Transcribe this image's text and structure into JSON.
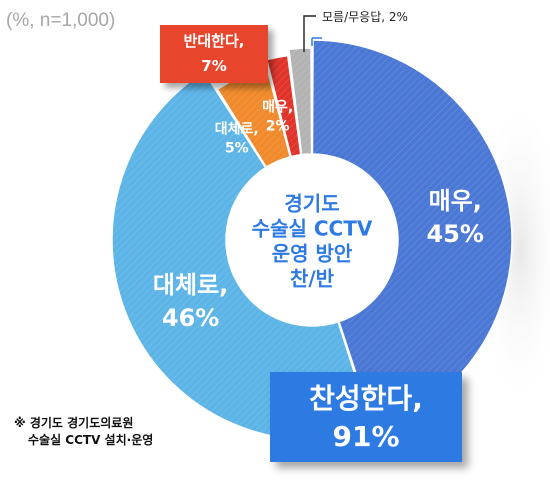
{
  "base_note": "(%, n=1,000)",
  "negative_box": {
    "line1": "반대한다,",
    "line2": "7%"
  },
  "positive_box": {
    "line1": "찬성한다,",
    "line2": "91%"
  },
  "footnote": {
    "line1": "※ 경기도 경기도의료원",
    "line2": "수술실 CCTV 설치·운영"
  },
  "chart_data": {
    "type": "pie",
    "style": "donut",
    "center_label": [
      "경기도",
      "수술실 CCTV",
      "운영 방안",
      "찬/반"
    ],
    "slices": [
      {
        "label": "매우,",
        "value": 45,
        "value_text": "45%",
        "color": "#4a78d4",
        "group": "찬성한다"
      },
      {
        "label": "대체로,",
        "value": 46,
        "value_text": "46%",
        "color": "#5db4e6",
        "group": "찬성한다"
      },
      {
        "label": "대체로,",
        "value": 5,
        "value_text": "5%",
        "color": "#f08a2c",
        "group": "반대한다"
      },
      {
        "label": "매우,",
        "value": 2,
        "value_text": "2%",
        "color": "#e0342a",
        "group": "반대한다"
      },
      {
        "label": "모름/무응답,",
        "value": 2,
        "value_text": "2%",
        "color": "#b3b3b3",
        "group": ""
      }
    ],
    "callout_label": "모름/무응답, 2%"
  }
}
